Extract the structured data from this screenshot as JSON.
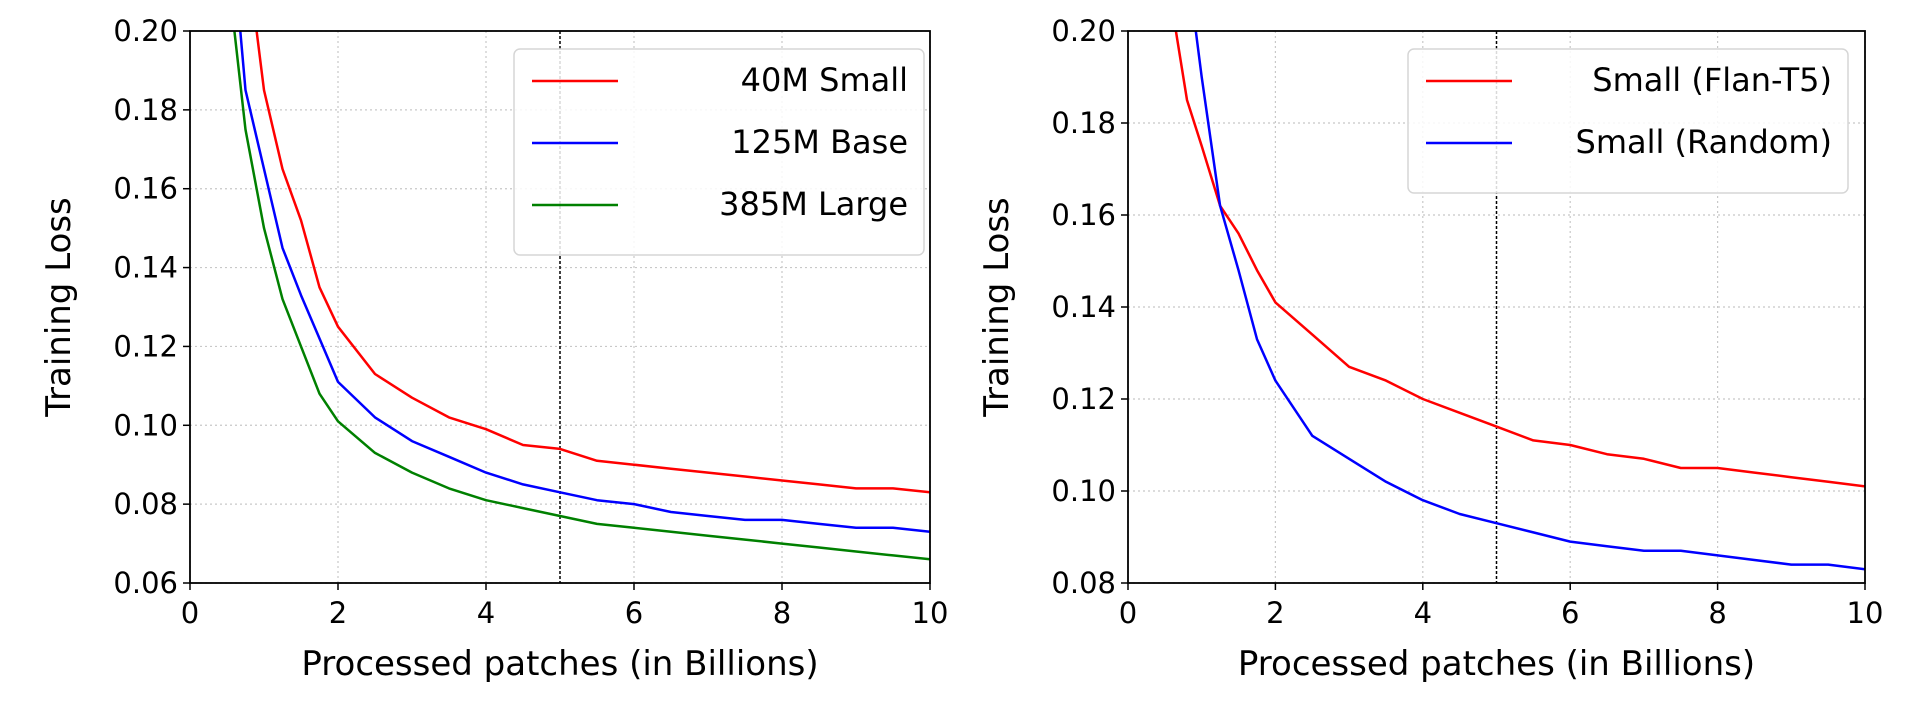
{
  "chart_data": [
    {
      "type": "line",
      "xlabel": "Processed patches (in Billions)",
      "ylabel": "Training Loss",
      "xlim": [
        0,
        10
      ],
      "ylim": [
        0.06,
        0.2
      ],
      "xticks": [
        "0",
        "2",
        "4",
        "6",
        "8",
        "10"
      ],
      "yticks": [
        "0.06",
        "0.08",
        "0.10",
        "0.12",
        "0.14",
        "0.16",
        "0.18",
        "0.20"
      ],
      "grid": true,
      "vline_x": 5,
      "legend_position": "top-right",
      "series": [
        {
          "name": "40M Small",
          "color": "#ff0000",
          "x": [
            0.9,
            1.0,
            1.25,
            1.5,
            1.75,
            2,
            2.5,
            3,
            3.5,
            4,
            4.5,
            5,
            5.5,
            6,
            6.5,
            7,
            7.5,
            8,
            8.5,
            9,
            9.5,
            10
          ],
          "y": [
            0.2,
            0.185,
            0.165,
            0.152,
            0.135,
            0.125,
            0.113,
            0.107,
            0.102,
            0.099,
            0.095,
            0.094,
            0.091,
            0.09,
            0.089,
            0.088,
            0.087,
            0.086,
            0.085,
            0.084,
            0.084,
            0.083
          ]
        },
        {
          "name": "125M Base",
          "color": "#0000ff",
          "x": [
            0.68,
            0.75,
            1,
            1.25,
            1.5,
            1.75,
            2,
            2.5,
            3,
            3.5,
            4,
            4.5,
            5,
            5.5,
            6,
            6.5,
            7,
            7.5,
            8,
            8.5,
            9,
            9.5,
            10
          ],
          "y": [
            0.2,
            0.185,
            0.165,
            0.145,
            0.133,
            0.122,
            0.111,
            0.102,
            0.096,
            0.092,
            0.088,
            0.085,
            0.083,
            0.081,
            0.08,
            0.078,
            0.077,
            0.076,
            0.076,
            0.075,
            0.074,
            0.074,
            0.073
          ]
        },
        {
          "name": "385M Large",
          "color": "#008000",
          "x": [
            0.6,
            0.75,
            1,
            1.25,
            1.5,
            1.75,
            2,
            2.5,
            3,
            3.5,
            4,
            4.5,
            5,
            5.5,
            6,
            6.5,
            7,
            7.5,
            8,
            8.5,
            9,
            9.5,
            10
          ],
          "y": [
            0.2,
            0.175,
            0.15,
            0.132,
            0.12,
            0.108,
            0.101,
            0.093,
            0.088,
            0.084,
            0.081,
            0.079,
            0.077,
            0.075,
            0.074,
            0.073,
            0.072,
            0.071,
            0.07,
            0.069,
            0.068,
            0.067,
            0.066
          ]
        }
      ]
    },
    {
      "type": "line",
      "xlabel": "Processed patches (in Billions)",
      "ylabel": "Training Loss",
      "xlim": [
        0,
        10
      ],
      "ylim": [
        0.08,
        0.2
      ],
      "xticks": [
        "0",
        "2",
        "4",
        "6",
        "8",
        "10"
      ],
      "yticks": [
        "0.08",
        "0.10",
        "0.12",
        "0.14",
        "0.16",
        "0.18",
        "0.20"
      ],
      "grid": true,
      "vline_x": 5,
      "legend_position": "top-right",
      "series": [
        {
          "name": "Small (Flan-T5)",
          "color": "#ff0000",
          "x": [
            0.65,
            0.8,
            1,
            1.25,
            1.5,
            1.75,
            2,
            2.5,
            3,
            3.5,
            4,
            4.5,
            5,
            5.5,
            6,
            6.5,
            7,
            7.5,
            8,
            8.5,
            9,
            9.5,
            10
          ],
          "y": [
            0.2,
            0.185,
            0.175,
            0.162,
            0.156,
            0.148,
            0.141,
            0.134,
            0.127,
            0.124,
            0.12,
            0.117,
            0.114,
            0.111,
            0.11,
            0.108,
            0.107,
            0.105,
            0.105,
            0.104,
            0.103,
            0.102,
            0.101
          ]
        },
        {
          "name": "Small (Random)",
          "color": "#0000ff",
          "x": [
            0.92,
            1,
            1.25,
            1.5,
            1.75,
            2,
            2.5,
            3,
            3.5,
            4,
            4.5,
            5,
            5.5,
            6,
            6.5,
            7,
            7.5,
            8,
            8.5,
            9,
            9.5,
            10
          ],
          "y": [
            0.2,
            0.19,
            0.162,
            0.148,
            0.133,
            0.124,
            0.112,
            0.107,
            0.102,
            0.098,
            0.095,
            0.093,
            0.091,
            0.089,
            0.088,
            0.087,
            0.087,
            0.086,
            0.085,
            0.084,
            0.084,
            0.083
          ]
        }
      ]
    }
  ]
}
